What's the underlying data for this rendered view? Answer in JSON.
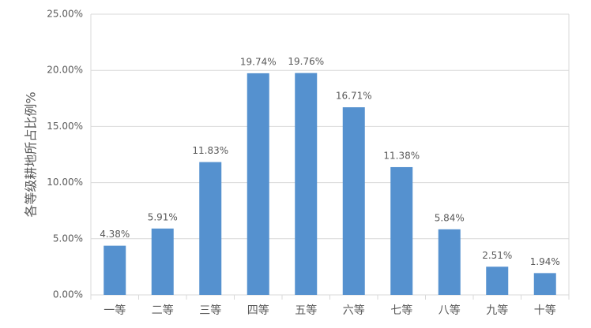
{
  "chart_data": {
    "type": "bar",
    "y_label": "各等级耕地所占比例%",
    "categories": [
      "一等",
      "二等",
      "三等",
      "四等",
      "五等",
      "六等",
      "七等",
      "八等",
      "九等",
      "十等"
    ],
    "values": [
      4.38,
      5.91,
      11.83,
      19.74,
      19.76,
      16.71,
      11.38,
      5.84,
      2.51,
      1.94
    ],
    "value_labels": [
      "4.38%",
      "5.91%",
      "11.83%",
      "19.74%",
      "19.76%",
      "16.71%",
      "11.38%",
      "5.84%",
      "2.51%",
      "1.94%"
    ],
    "color": "#5591cf",
    "ylim": [
      0,
      25
    ],
    "yticks": [
      {
        "value": 0,
        "label": "0.00%"
      },
      {
        "value": 5,
        "label": "5.00%"
      },
      {
        "value": 10,
        "label": "10.00%"
      },
      {
        "value": 15,
        "label": "15.00%"
      },
      {
        "value": 20,
        "label": "20.00%"
      },
      {
        "value": 25,
        "label": "25.00%"
      }
    ],
    "grid": true
  }
}
